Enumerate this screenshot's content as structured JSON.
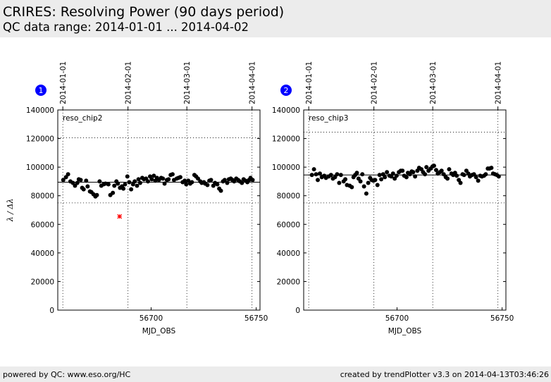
{
  "header": {
    "title": "CRIRES: Resolving Power (90 days period)",
    "subtitle": "QC data range: 2014-01-01 ... 2014-04-02"
  },
  "footer": {
    "left": "powered by QC: www.eso.org/HC",
    "right": "created by trendPlotter v3.3 on 2014-04-13T03:46:26"
  },
  "colors": {
    "point": "#000000",
    "outlier": "#ff0000",
    "badge": "#0000ff",
    "background": "#ececec"
  },
  "chart_data": [
    {
      "type": "scatter",
      "badge": "1",
      "label": "reso_chip2",
      "xlabel": "MJD_OBS",
      "ylabel": "λ / Δλ",
      "xlim": [
        56655.6,
        56751.8
      ],
      "ylim": [
        0,
        140000
      ],
      "xticks": [
        56700,
        56750
      ],
      "yticks": [
        0,
        20000,
        40000,
        60000,
        80000,
        100000,
        120000,
        140000
      ],
      "date_ticks": [
        {
          "label": "2014-01-01",
          "mjd": 56658
        },
        {
          "label": "2014-02-01",
          "mjd": 56689
        },
        {
          "label": "2014-03-01",
          "mjd": 56717
        },
        {
          "label": "2014-04-01",
          "mjd": 56748
        }
      ],
      "reference": 89500,
      "tolerance": [
        75000,
        120500
      ],
      "outliers": [
        {
          "x": 56685.0,
          "y": 65500
        }
      ],
      "x": [
        56658.2,
        56659.5,
        56660.5,
        56661.6,
        56662.8,
        56663.8,
        56664.9,
        56665.6,
        56666.5,
        56667.2,
        56667.9,
        56669.1,
        56669.8,
        56670.9,
        56671.6,
        56672.6,
        56673.5,
        56674.2,
        56675.5,
        56676.3,
        56677.4,
        56678.3,
        56679.7,
        56680.6,
        56681.8,
        56682.5,
        56683.5,
        56684.2,
        56685.2,
        56686.1,
        56686.8,
        56687.6,
        56688.7,
        56689.6,
        56690.5,
        56691.4,
        56692.2,
        56693.3,
        56694.0,
        56694.8,
        56695.8,
        56696.6,
        56697.6,
        56698.5,
        56699.5,
        56700.3,
        56701.3,
        56702.0,
        56702.8,
        56703.7,
        56704.8,
        56705.6,
        56706.4,
        56707.5,
        56708.3,
        56709.3,
        56710.2,
        56710.9,
        56712.2,
        56713.0,
        56713.9,
        56715.0,
        56716.0,
        56716.7,
        56717.7,
        56718.6,
        56719.4,
        56720.6,
        56721.4,
        56722.3,
        56723.4,
        56724.1,
        56725.1,
        56725.7,
        56726.8,
        56727.7,
        56728.5,
        56729.6,
        56730.4,
        56731.5,
        56732.4,
        56733.2,
        56734.2,
        56735.0,
        56736.2,
        56737.0,
        56737.9,
        56738.7,
        56739.5,
        56740.5,
        56741.4,
        56742.2,
        56743.2,
        56744.0,
        56744.9,
        56745.8,
        56746.6,
        56747.3,
        56748.3
      ],
      "y": [
        91000,
        93000,
        95000,
        90000,
        89000,
        87000,
        89000,
        91500,
        91000,
        85500,
        84500,
        90500,
        86500,
        83000,
        82500,
        81000,
        79500,
        80500,
        90000,
        87000,
        88000,
        88500,
        88000,
        80500,
        82000,
        87000,
        90000,
        88500,
        85500,
        86500,
        85000,
        88000,
        93500,
        89500,
        84500,
        88000,
        90000,
        87000,
        91500,
        89000,
        92500,
        91500,
        92000,
        90000,
        93500,
        91500,
        94000,
        90500,
        92500,
        91000,
        92500,
        92000,
        88500,
        91000,
        91500,
        94500,
        95000,
        91000,
        92000,
        92500,
        93000,
        89500,
        90500,
        88000,
        90500,
        88500,
        89500,
        94500,
        93500,
        92000,
        90000,
        89000,
        89500,
        88500,
        87500,
        90500,
        91000,
        87000,
        89000,
        88000,
        85000,
        83500,
        90000,
        91000,
        89000,
        91500,
        92000,
        91000,
        90000,
        92000,
        91000,
        90000,
        89000,
        91500,
        90500,
        89500,
        91000,
        92500,
        91000
      ]
    },
    {
      "type": "scatter",
      "badge": "2",
      "label": "reso_chip3",
      "xlabel": "MJD_OBS",
      "ylabel": "",
      "xlim": [
        56655.6,
        56751.8
      ],
      "ylim": [
        0,
        140000
      ],
      "xticks": [
        56700,
        56750
      ],
      "yticks": [
        0,
        20000,
        40000,
        60000,
        80000,
        100000,
        120000,
        140000
      ],
      "date_ticks": [
        {
          "label": "2014-01-01",
          "mjd": 56658
        },
        {
          "label": "2014-02-01",
          "mjd": 56689
        },
        {
          "label": "2014-03-01",
          "mjd": 56717
        },
        {
          "label": "2014-04-01",
          "mjd": 56748
        }
      ],
      "reference": 94500,
      "tolerance": [
        75000,
        124500
      ],
      "outliers": [],
      "x": [
        56659.5,
        56660.5,
        56661.5,
        56662.3,
        56663.3,
        56664.2,
        56665.4,
        56666.2,
        56667.5,
        56668.6,
        56669.5,
        56670.5,
        56671.5,
        56672.5,
        56673.3,
        56674.6,
        56675.4,
        56676.2,
        56677.5,
        56678.5,
        56679.3,
        56680.1,
        56680.9,
        56681.7,
        56682.6,
        56683.5,
        56684.3,
        56685.4,
        56686.3,
        56687.2,
        56687.9,
        56688.8,
        56689.6,
        56690.7,
        56691.7,
        56692.5,
        56693.4,
        56694.2,
        56695.2,
        56696.4,
        56697.3,
        56698.1,
        56698.9,
        56699.8,
        56700.9,
        56701.8,
        56702.6,
        56703.4,
        56704.5,
        56705.2,
        56706.1,
        56707.0,
        56707.7,
        56708.6,
        56709.7,
        56710.5,
        56711.6,
        56712.4,
        56713.3,
        56714.0,
        56715.0,
        56716.0,
        56716.9,
        56717.6,
        56718.6,
        56719.4,
        56720.4,
        56721.2,
        56722.2,
        56723.2,
        56724.0,
        56724.8,
        56725.9,
        56726.7,
        56727.6,
        56728.4,
        56729.4,
        56730.2,
        56731.2,
        56731.9,
        56733.0,
        56733.9,
        56734.7,
        56735.7,
        56736.6,
        56737.6,
        56738.6,
        56739.6,
        56740.4,
        56741.4,
        56742.2,
        56743.2,
        56744.0,
        56744.9,
        56745.7,
        56746.6,
        56747.5,
        56748.4
      ],
      "y": [
        94500,
        98500,
        95000,
        91000,
        95500,
        93000,
        94000,
        92500,
        93500,
        94500,
        92000,
        93000,
        95000,
        89000,
        94500,
        90000,
        91500,
        87500,
        87000,
        86000,
        93000,
        94500,
        96000,
        92000,
        90000,
        95000,
        86500,
        81500,
        89000,
        92500,
        91000,
        90500,
        91000,
        87500,
        94500,
        91500,
        95000,
        93000,
        96500,
        94000,
        93500,
        95500,
        92000,
        94000,
        96500,
        97500,
        97500,
        94000,
        93000,
        96000,
        95000,
        97000,
        96500,
        93500,
        97500,
        99500,
        98500,
        96500,
        95000,
        100000,
        97500,
        99000,
        100500,
        101000,
        98000,
        95500,
        96500,
        97500,
        95000,
        93000,
        92000,
        98500,
        95500,
        94500,
        96000,
        94000,
        91000,
        89000,
        95000,
        94500,
        97500,
        95500,
        93500,
        94500,
        95000,
        93000,
        90500,
        94000,
        93500,
        94000,
        95000,
        99000,
        99000,
        99500,
        95500,
        95000,
        94500,
        93500
      ]
    }
  ]
}
